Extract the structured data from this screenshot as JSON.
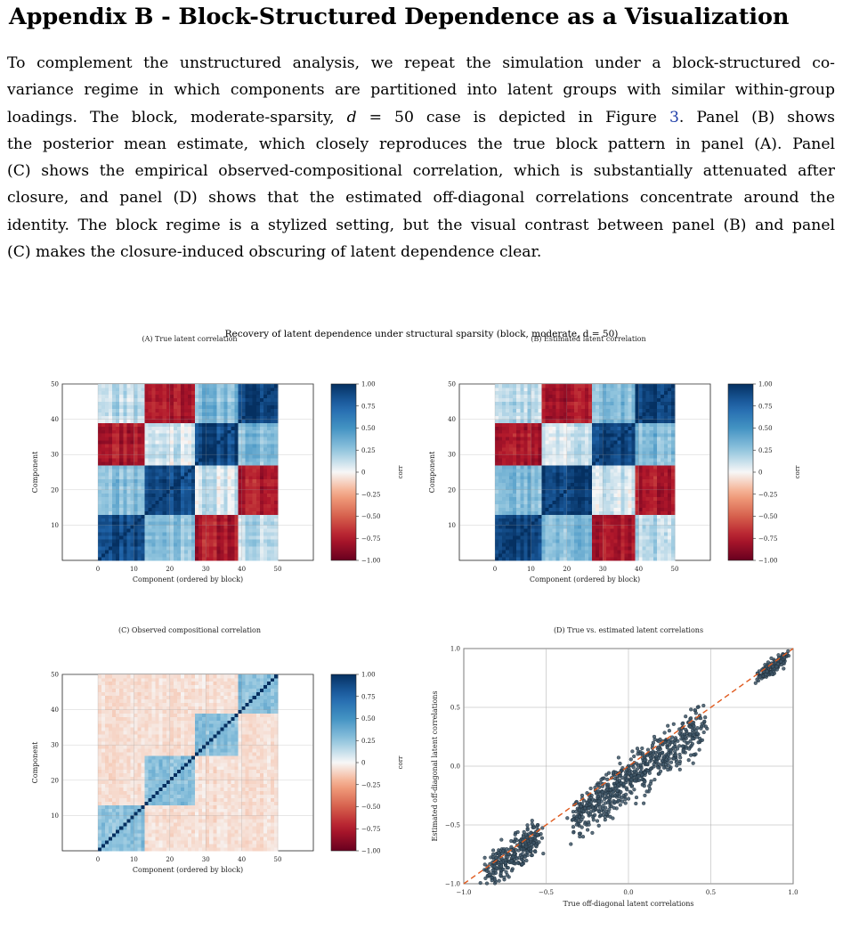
{
  "heading": "Appendix B - Block-Structured Dependence as a Visualization",
  "paragraph": {
    "lines": [
      "To complement the unstructured analysis, we repeat the simulation under a block-structured co-",
      "variance regime in which components are partitioned into latent groups with similar within-group",
      [
        "loadings.  The block, moderate-sparsity, ",
        "d",
        " = 50 case is depicted in Figure ",
        "3",
        ".  Panel (B) shows"
      ],
      "the posterior mean estimate, which closely reproduces the true block pattern in panel (A). Panel",
      "(C) shows the empirical observed-compositional correlation, which is substantially attenuated after",
      "closure, and panel (D) shows that the estimated off-diagonal correlations concentrate around the",
      "identity. The block regime is a stylized setting, but the visual contrast between panel (B) and panel",
      "(C) makes the closure-induced obscuring of latent dependence clear."
    ]
  },
  "figure": {
    "title": "Recovery of latent dependence under structural sparsity (block, moderate, d = 50)",
    "panels": [
      {
        "id": "A",
        "title": "(A) True latent correlation",
        "ylabel": "Component",
        "xlabel": "Component (ordered by block)",
        "mode": "true"
      },
      {
        "id": "B",
        "title": "(B) Estimated latent correlation",
        "ylabel": "Component",
        "xlabel": "Component (ordered by block)",
        "mode": "est"
      },
      {
        "id": "C",
        "title": "(C) Observed compositional correlation",
        "ylabel": "Component",
        "xlabel": "Component (ordered by block)",
        "mode": "obs"
      }
    ],
    "heat_ticks": [
      "0",
      "10",
      "20",
      "30",
      "40",
      "50"
    ],
    "colorbar": {
      "label": "corr",
      "ticks": [
        "1.00",
        "0.75",
        "0.50",
        "0.25",
        "0",
        "−0.25",
        "−0.50",
        "−0.75",
        "−1.00"
      ]
    },
    "blocks": [
      [
        0,
        13
      ],
      [
        13,
        27
      ],
      [
        27,
        39
      ],
      [
        39,
        50
      ]
    ],
    "block_corr": [
      [
        0.9,
        0.3,
        -0.75,
        0.15
      ],
      [
        0.3,
        0.9,
        0.1,
        -0.75
      ],
      [
        -0.75,
        0.1,
        0.9,
        0.3
      ],
      [
        0.15,
        -0.75,
        0.3,
        0.9
      ]
    ]
  },
  "chart_data": {
    "type": "scatter",
    "title": "(D) True vs. estimated latent correlations",
    "xlabel": "True off-diagonal latent correlations",
    "ylabel": "Estimated off-diagonal latent correlations",
    "xlim": [
      -1.0,
      1.0
    ],
    "ylim": [
      -1.0,
      1.0
    ],
    "xticks": [
      "−1.0",
      "−0.5",
      "0.0",
      "0.5",
      "1.0"
    ],
    "yticks": [
      "1.0",
      "0.5",
      "0.0",
      "−0.5",
      "−1.0"
    ],
    "reference_line": "identity (dashed)",
    "clusters": [
      {
        "x_range": [
          -0.85,
          -0.55
        ],
        "y_center_offset": -0.05,
        "y_spread": 0.08,
        "count": 300
      },
      {
        "x_range": [
          -0.35,
          0.45
        ],
        "y_center_offset": -0.12,
        "y_spread": 0.1,
        "count": 650
      },
      {
        "x_range": [
          0.8,
          0.95
        ],
        "y_center_offset": -0.03,
        "y_spread": 0.03,
        "count": 150
      }
    ],
    "colors": {
      "points": "#3d5566",
      "reference": "#e05a1e"
    }
  },
  "bottom_text": "estimated off-diagonal latent correlations concentrate around the identity line"
}
